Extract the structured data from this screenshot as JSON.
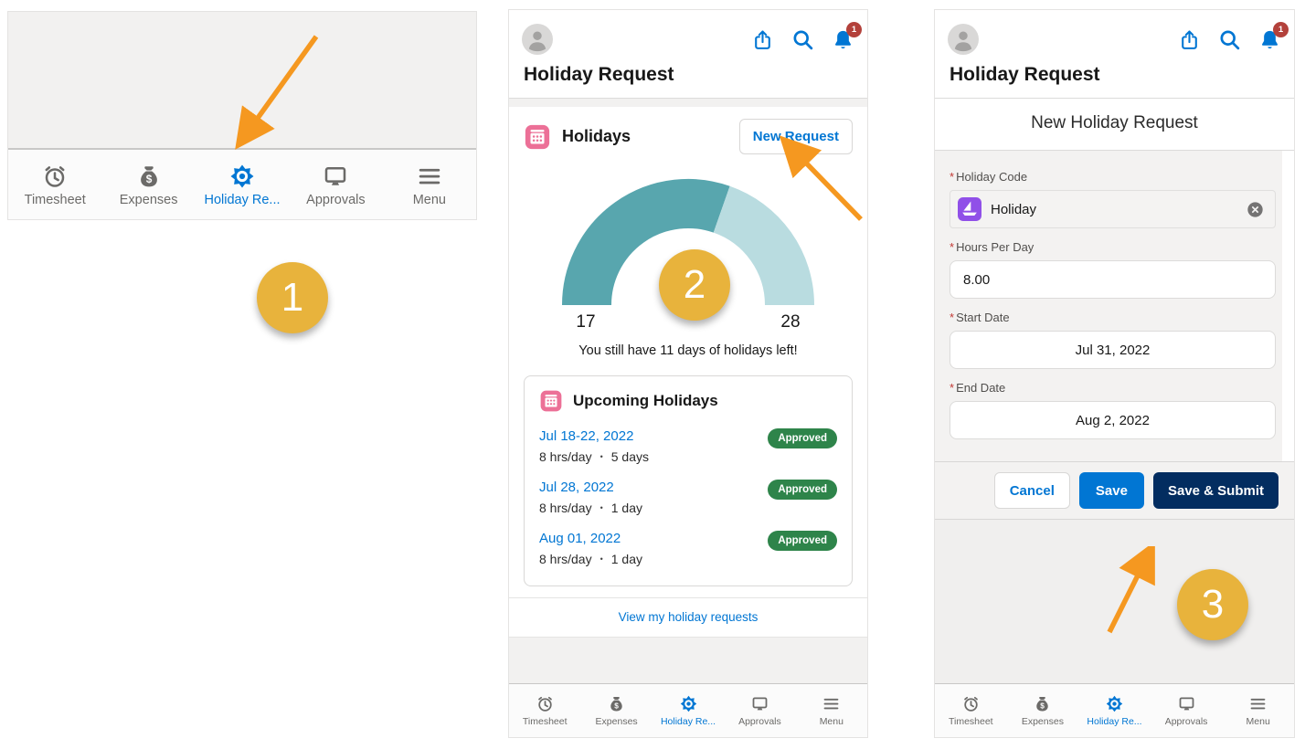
{
  "colors": {
    "accent_blue": "#0176d3",
    "navy": "#032d60",
    "success_green": "#2e844a",
    "event_pink": "#ec7097",
    "holiday_purple": "#9050e8",
    "annotation_orange": "#f59820",
    "marker_amber": "#e8b33c",
    "notification_red": "#b3413b"
  },
  "annotations": {
    "step1": "1",
    "step2": "2",
    "step3": "3"
  },
  "header": {
    "title": "Holiday Request",
    "notification_count": "1"
  },
  "tab_bar": {
    "items": [
      {
        "label": "Timesheet",
        "icon": "alarm-clock-icon",
        "active": false
      },
      {
        "label": "Expenses",
        "icon": "money-bag-icon",
        "active": false
      },
      {
        "label": "Holiday Re...",
        "icon": "sun-gear-icon",
        "active": true
      },
      {
        "label": "Approvals",
        "icon": "monitor-icon",
        "active": false
      },
      {
        "label": "Menu",
        "icon": "hamburger-icon",
        "active": false
      }
    ]
  },
  "screen2": {
    "card_title": "Holidays",
    "new_request_button": "New Request",
    "chart_data": {
      "type": "gauge",
      "used": 17,
      "total": 28,
      "remaining": 11,
      "min_label": "17",
      "max_label": "28",
      "used_color": "#58a6ae",
      "remaining_color": "#b9dce0",
      "start_angle_deg": 180,
      "end_angle_deg": 0
    },
    "remaining_message": "You still have 11 days of holidays left!",
    "upcoming": {
      "title": "Upcoming Holidays",
      "entries": [
        {
          "date": "Jul 18-22, 2022",
          "rate": "8 hrs/day",
          "separator": "•",
          "duration": "5 days",
          "status": "Approved"
        },
        {
          "date": "Jul 28, 2022",
          "rate": "8 hrs/day",
          "separator": "•",
          "duration": "1 day",
          "status": "Approved"
        },
        {
          "date": "Aug 01, 2022",
          "rate": "8 hrs/day",
          "separator": "•",
          "duration": "1 day",
          "status": "Approved"
        }
      ]
    },
    "footer_link": "View my holiday requests"
  },
  "screen3": {
    "form_title": "New Holiday Request",
    "fields": {
      "holiday_code": {
        "required": "*",
        "label": "Holiday Code",
        "value": "Holiday"
      },
      "hours_per_day": {
        "required": "*",
        "label": "Hours Per Day",
        "value": "8.00"
      },
      "start_date": {
        "required": "*",
        "label": "Start Date",
        "value": "Jul 31, 2022"
      },
      "end_date": {
        "required": "*",
        "label": "End Date",
        "value": "Aug 2, 2022"
      }
    },
    "buttons": {
      "cancel": "Cancel",
      "save": "Save",
      "save_submit": "Save & Submit"
    }
  }
}
